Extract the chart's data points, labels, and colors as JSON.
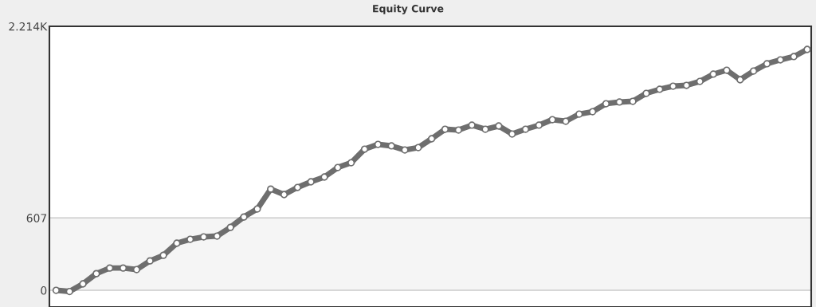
{
  "chart_data": {
    "type": "line",
    "title": "Equity Curve",
    "categories": [
      null,
      null,
      null,
      null,
      null,
      null,
      null,
      null,
      null,
      null,
      null,
      null,
      null,
      null,
      null,
      null,
      null,
      null,
      null,
      null,
      null,
      null,
      null,
      null,
      null,
      null,
      null,
      null,
      null,
      null,
      null,
      null,
      null,
      null,
      null,
      null,
      null,
      null,
      null,
      null,
      null,
      null,
      null,
      null,
      null,
      null,
      null,
      null,
      null,
      null,
      null,
      null,
      null,
      null,
      null,
      null,
      null
    ],
    "series": [
      {
        "color": "#6e6e6e",
        "values": [
          0,
          -10,
          54,
          140,
          187,
          187,
          174,
          247,
          294,
          395,
          428,
          448,
          455,
          528,
          615,
          682,
          849,
          803,
          863,
          910,
          950,
          1030,
          1070,
          1184,
          1224,
          1211,
          1177,
          1197,
          1271,
          1351,
          1344,
          1385,
          1351,
          1378,
          1311,
          1351,
          1385,
          1431,
          1418,
          1478,
          1498,
          1565,
          1579,
          1585,
          1652,
          1686,
          1712,
          1719,
          1752,
          1813,
          1846,
          1766,
          1839,
          1900,
          1933,
          1960,
          2020
        ]
      }
    ],
    "ylim": [
      -140,
      2214
    ],
    "yticks": [
      0,
      607,
      {
        "value": 2214,
        "label": "2.214K"
      }
    ],
    "tick_labels": "y",
    "grid": "y",
    "marker": "circle",
    "bands": [
      {
        "axis": "y",
        "from": 0,
        "to": 607,
        "color": "#f5f5f5"
      }
    ]
  }
}
